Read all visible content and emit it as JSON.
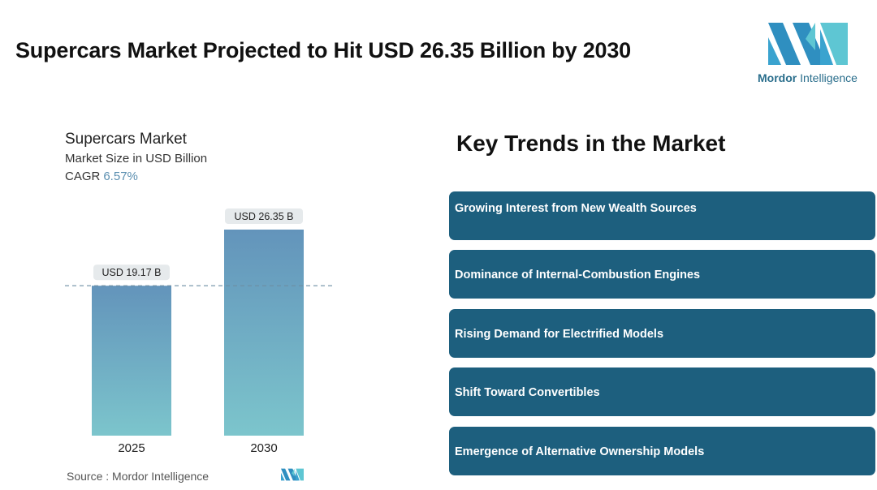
{
  "headline": "Supercars Market Projected to Hit USD 26.35 Billion by 2030",
  "logo": {
    "brand_bold": "Mordor",
    "brand_rest": " Intelligence",
    "icon": "mordor-intelligence-logo-icon"
  },
  "chart_data": {
    "type": "bar",
    "title": "Supercars Market",
    "subtitle": "Market Size in USD Billion",
    "cagr_label": "CAGR",
    "cagr_value": "6.57%",
    "categories": [
      "2025",
      "2030"
    ],
    "values": [
      19.17,
      26.35
    ],
    "value_labels": [
      "USD 19.17 B",
      "USD 26.35 B"
    ],
    "ylim": [
      0,
      26.35
    ],
    "reference_line_at": 19.17,
    "colors": {
      "bar_top": "#6394bb",
      "bar_bottom": "#7cc5cc",
      "label_bg": "#e6eaec",
      "ref_line": "#6c8da3"
    }
  },
  "source": "Source :  Mordor Intelligence",
  "trends": {
    "title": "Key Trends in the Market",
    "items": [
      "Growing Interest from New Wealth Sources",
      "Dominance of Internal-Combustion Engines",
      "Rising Demand for Electrified Models",
      "Shift Toward Convertibles",
      "Emergence of Alternative Ownership Models"
    ]
  },
  "colors": {
    "trend_box": "#1d5f7e",
    "logo_teal": "#3b9ec4",
    "logo_light": "#5ec6d3"
  }
}
